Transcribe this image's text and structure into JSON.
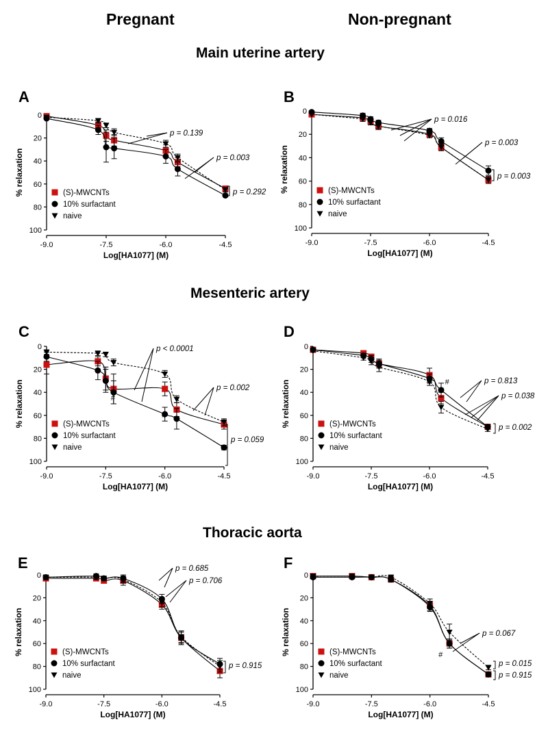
{
  "headers": {
    "columns": [
      "Pregnant",
      "Non-pregnant"
    ],
    "sections": [
      "Main uterine artery",
      "Mesenteric artery",
      "Thoracic aorta"
    ]
  },
  "colors": {
    "mwcnt": "#cc1111",
    "surfactant": "#000000",
    "naive": "#000000"
  },
  "chart_data": [
    {
      "id": "A",
      "type": "line",
      "ylabel": "% relaxation",
      "xlabel": "Log[HA1077] (M)",
      "xlim": [
        -9.0,
        -4.5
      ],
      "ylim": [
        0,
        100
      ],
      "y_inverted": true,
      "xticks": [
        -9.0,
        -7.5,
        -6.0,
        -4.5
      ],
      "xtick_labels": [
        "-9.0",
        "-7.5",
        "-6.0",
        "-4.5"
      ],
      "yticks": [
        0,
        20,
        40,
        60,
        80,
        100
      ],
      "legend": "bottom-left",
      "series": [
        {
          "name": "(S)-MWCNTs",
          "marker": "square",
          "dashed": false,
          "x": [
            -9.0,
            -7.7,
            -7.5,
            -7.3,
            -6.0,
            -5.7,
            -4.5
          ],
          "y": [
            1,
            9,
            18,
            22,
            31,
            41,
            64
          ],
          "err": [
            0,
            3,
            5,
            5,
            5,
            4,
            2
          ]
        },
        {
          "name": "10% surfactant",
          "marker": "circle",
          "dashed": false,
          "x": [
            -9.0,
            -7.7,
            -7.5,
            -7.3,
            -6.0,
            -5.7,
            -4.5
          ],
          "y": [
            3,
            13,
            28,
            29,
            36,
            47,
            70
          ],
          "err": [
            0,
            4,
            13,
            9,
            6,
            6,
            1
          ]
        },
        {
          "name": "naive",
          "marker": "triangle-down",
          "dashed": true,
          "x": [
            -9.0,
            -7.7,
            -7.5,
            -7.3,
            -6.0,
            -5.7,
            -4.5
          ],
          "y": [
            2,
            5,
            9,
            15,
            25,
            37,
            65
          ],
          "err": [
            0,
            2,
            2,
            3,
            3,
            3,
            2
          ]
        }
      ],
      "annotations": [
        "p = 0.139",
        "p = 0.003",
        "p = 0.292"
      ],
      "marks": []
    },
    {
      "id": "B",
      "type": "line",
      "ylabel": "% relaxation",
      "xlabel": "Log[HA1077] (M)",
      "xlim": [
        -9.0,
        -4.5
      ],
      "ylim": [
        0,
        100
      ],
      "y_inverted": true,
      "xticks": [
        -9.0,
        -7.5,
        -6.0,
        -4.5
      ],
      "xtick_labels": [
        "-9.0",
        "-7.5",
        "-6.0",
        "-4.5"
      ],
      "yticks": [
        0,
        20,
        40,
        60,
        80,
        100
      ],
      "legend": "bottom-left",
      "series": [
        {
          "name": "(S)-MWCNTs",
          "marker": "square",
          "dashed": false,
          "x": [
            -9.0,
            -7.7,
            -7.5,
            -7.3,
            -6.0,
            -5.7,
            -4.5
          ],
          "y": [
            3,
            6,
            9,
            13,
            20,
            31,
            59
          ],
          "err": [
            0,
            2,
            2,
            3,
            2,
            3,
            3
          ]
        },
        {
          "name": "10% surfactant",
          "marker": "circle",
          "dashed": false,
          "x": [
            -9.0,
            -7.7,
            -7.5,
            -7.3,
            -6.0,
            -5.7,
            -4.5
          ],
          "y": [
            1,
            4,
            7,
            10,
            17,
            26,
            51
          ],
          "err": [
            0,
            2,
            2,
            2,
            2,
            3,
            4
          ]
        },
        {
          "name": "naive",
          "marker": "triangle-down",
          "dashed": true,
          "x": [
            -9.0,
            -7.7,
            -7.5,
            -7.3,
            -6.0,
            -5.7,
            -4.5
          ],
          "y": [
            3,
            7,
            10,
            13,
            21,
            31,
            59
          ],
          "err": [
            0,
            2,
            2,
            2,
            2,
            3,
            3
          ]
        }
      ],
      "annotations": [
        "p = 0.016",
        "p = 0.003",
        "p = 0.003"
      ],
      "marks": []
    },
    {
      "id": "C",
      "type": "line",
      "ylabel": "% relaxation",
      "xlabel": "Log[HA1077] (M)",
      "xlim": [
        -9.0,
        -4.5
      ],
      "ylim": [
        0,
        100
      ],
      "y_inverted": true,
      "xticks": [
        -9.0,
        -7.5,
        -6.0,
        -4.5
      ],
      "xtick_labels": [
        "-9.0",
        "-7.5",
        "-6.0",
        "-4.5"
      ],
      "yticks": [
        0,
        20,
        40,
        60,
        80,
        100
      ],
      "legend": "bottom-left",
      "series": [
        {
          "name": "(S)-MWCNTs",
          "marker": "square",
          "dashed": false,
          "x": [
            -9.0,
            -7.7,
            -7.5,
            -7.3,
            -6.0,
            -5.7,
            -4.5
          ],
          "y": [
            16,
            13,
            28,
            37,
            37,
            55,
            68
          ],
          "err": [
            8,
            4,
            10,
            13,
            6,
            6,
            4
          ]
        },
        {
          "name": "10% surfactant",
          "marker": "circle",
          "dashed": false,
          "x": [
            -9.0,
            -7.7,
            -7.5,
            -7.3,
            -6.0,
            -5.7,
            -4.5
          ],
          "y": [
            9,
            21,
            30,
            40,
            59,
            63,
            88
          ],
          "err": [
            4,
            8,
            10,
            10,
            6,
            9,
            2
          ]
        },
        {
          "name": "naive",
          "marker": "triangle-down",
          "dashed": true,
          "x": [
            -9.0,
            -7.7,
            -7.5,
            -7.3,
            -6.0,
            -5.7,
            -4.5
          ],
          "y": [
            5,
            6,
            7,
            14,
            24,
            46,
            66
          ],
          "err": [
            2,
            2,
            2,
            3,
            3,
            3,
            3
          ]
        }
      ],
      "annotations": [
        "p < 0.0001",
        "p = 0.002",
        "p = 0.059"
      ],
      "marks": [
        {
          "text": "#",
          "x": -7.37,
          "y": 47
        },
        {
          "text": "#",
          "x": -6.08,
          "y": 62
        }
      ]
    },
    {
      "id": "D",
      "type": "line",
      "ylabel": "% relaxation",
      "xlabel": "Log[HA1077] (M)",
      "xlim": [
        -9.0,
        -4.5
      ],
      "ylim": [
        0,
        100
      ],
      "y_inverted": true,
      "xticks": [
        -9.0,
        -7.5,
        -6.0,
        -4.5
      ],
      "xtick_labels": [
        "-9.0",
        "-7.5",
        "-6.0",
        "-4.5"
      ],
      "yticks": [
        0,
        20,
        40,
        60,
        80,
        100
      ],
      "legend": "bottom-left",
      "series": [
        {
          "name": "(S)-MWCNTs",
          "marker": "square",
          "dashed": false,
          "x": [
            -9.0,
            -7.7,
            -7.5,
            -7.3,
            -6.0,
            -5.7,
            -4.5
          ],
          "y": [
            3,
            6,
            9,
            15,
            25,
            45,
            70
          ],
          "err": [
            0,
            2,
            2,
            3,
            6,
            5,
            2
          ]
        },
        {
          "name": "10% surfactant",
          "marker": "circle",
          "dashed": false,
          "x": [
            -9.0,
            -7.7,
            -7.5,
            -7.3,
            -6.0,
            -5.7,
            -4.5
          ],
          "y": [
            3,
            8,
            11,
            15,
            28,
            38,
            70
          ],
          "err": [
            0,
            2,
            3,
            4,
            4,
            6,
            2
          ]
        },
        {
          "name": "naive",
          "marker": "triangle-down",
          "dashed": true,
          "x": [
            -9.0,
            -7.7,
            -7.5,
            -7.3,
            -6.0,
            -5.7,
            -4.5
          ],
          "y": [
            4,
            10,
            13,
            18,
            31,
            53,
            72
          ],
          "err": [
            0,
            2,
            3,
            4,
            3,
            5,
            2
          ]
        }
      ],
      "annotations": [
        "p = 0.813",
        "p = 0.038",
        "p = 0.002"
      ],
      "marks": [
        {
          "text": "#",
          "x": -5.6,
          "y": 33
        }
      ]
    },
    {
      "id": "E",
      "type": "line",
      "ylabel": "% relaxation",
      "xlabel": "Log[HA1077] (M)",
      "xlim": [
        -9.0,
        -4.5
      ],
      "ylim": [
        0,
        100
      ],
      "y_inverted": true,
      "xticks": [
        -9.0,
        -7.5,
        -6.0,
        -4.5
      ],
      "xtick_labels": [
        "-9.0",
        "-7.5",
        "-6.0",
        "-4.5"
      ],
      "yticks": [
        0,
        20,
        40,
        60,
        80,
        100
      ],
      "legend": "bottom-left",
      "series": [
        {
          "name": "(S)-MWCNTs",
          "marker": "square",
          "dashed": false,
          "x": [
            -9.0,
            -7.7,
            -7.5,
            -7.0,
            -6.0,
            -5.5,
            -4.5
          ],
          "y": [
            3,
            3,
            5,
            5,
            26,
            55,
            84
          ],
          "err": [
            2,
            2,
            2,
            4,
            4,
            6,
            6
          ]
        },
        {
          "name": "10% surfactant",
          "marker": "circle",
          "dashed": false,
          "x": [
            -9.0,
            -7.7,
            -7.5,
            -7.0,
            -6.0,
            -5.5,
            -4.5
          ],
          "y": [
            2,
            1,
            3,
            3,
            21,
            55,
            78
          ],
          "err": [
            2,
            2,
            2,
            3,
            4,
            5,
            5
          ]
        },
        {
          "name": "naive",
          "marker": "triangle-down",
          "dashed": true,
          "x": [
            -9.0,
            -7.7,
            -7.5,
            -7.0,
            -6.0,
            -5.5,
            -4.5
          ],
          "y": [
            2,
            2,
            3,
            4,
            24,
            54,
            80
          ],
          "err": [
            2,
            2,
            2,
            3,
            4,
            5,
            5
          ]
        }
      ],
      "annotations": [
        "p = 0.685",
        "p = 0.706",
        "p = 0.915"
      ],
      "marks": []
    },
    {
      "id": "F",
      "type": "line",
      "ylabel": "% relaxation",
      "xlabel": "Log[HA1077] (M)",
      "xlim": [
        -9.0,
        -4.5
      ],
      "ylim": [
        0,
        100
      ],
      "y_inverted": true,
      "xticks": [
        -9.0,
        -7.5,
        -6.0,
        -4.5
      ],
      "xtick_labels": [
        "-9.0",
        "-7.5",
        "-6.0",
        "-4.5"
      ],
      "yticks": [
        0,
        20,
        40,
        60,
        80,
        100
      ],
      "legend": "bottom-left",
      "series": [
        {
          "name": "(S)-MWCNTs",
          "marker": "square",
          "dashed": false,
          "x": [
            -9.0,
            -8.0,
            -7.5,
            -7.0,
            -6.0,
            -5.5,
            -4.5
          ],
          "y": [
            1,
            1,
            2,
            4,
            27,
            60,
            87
          ],
          "err": [
            1,
            1,
            1,
            2,
            4,
            4,
            2
          ]
        },
        {
          "name": "10% surfactant",
          "marker": "circle",
          "dashed": false,
          "x": [
            -9.0,
            -8.0,
            -7.5,
            -7.0,
            -6.0,
            -5.5,
            -4.5
          ],
          "y": [
            2,
            2,
            2,
            4,
            28,
            60,
            87
          ],
          "err": [
            1,
            1,
            1,
            2,
            4,
            4,
            2
          ]
        },
        {
          "name": "naive",
          "marker": "triangle-down",
          "dashed": true,
          "x": [
            -9.0,
            -8.0,
            -7.5,
            -7.0,
            -6.0,
            -5.5,
            -4.5
          ],
          "y": [
            1,
            1,
            2,
            2,
            25,
            50,
            81
          ],
          "err": [
            1,
            1,
            1,
            2,
            4,
            7,
            2
          ]
        }
      ],
      "annotations": [
        "p = 0.067",
        "p = 0.015",
        "p = 0.915"
      ],
      "marks": [
        {
          "text": "#",
          "x": -5.78,
          "y": 72
        }
      ]
    }
  ]
}
